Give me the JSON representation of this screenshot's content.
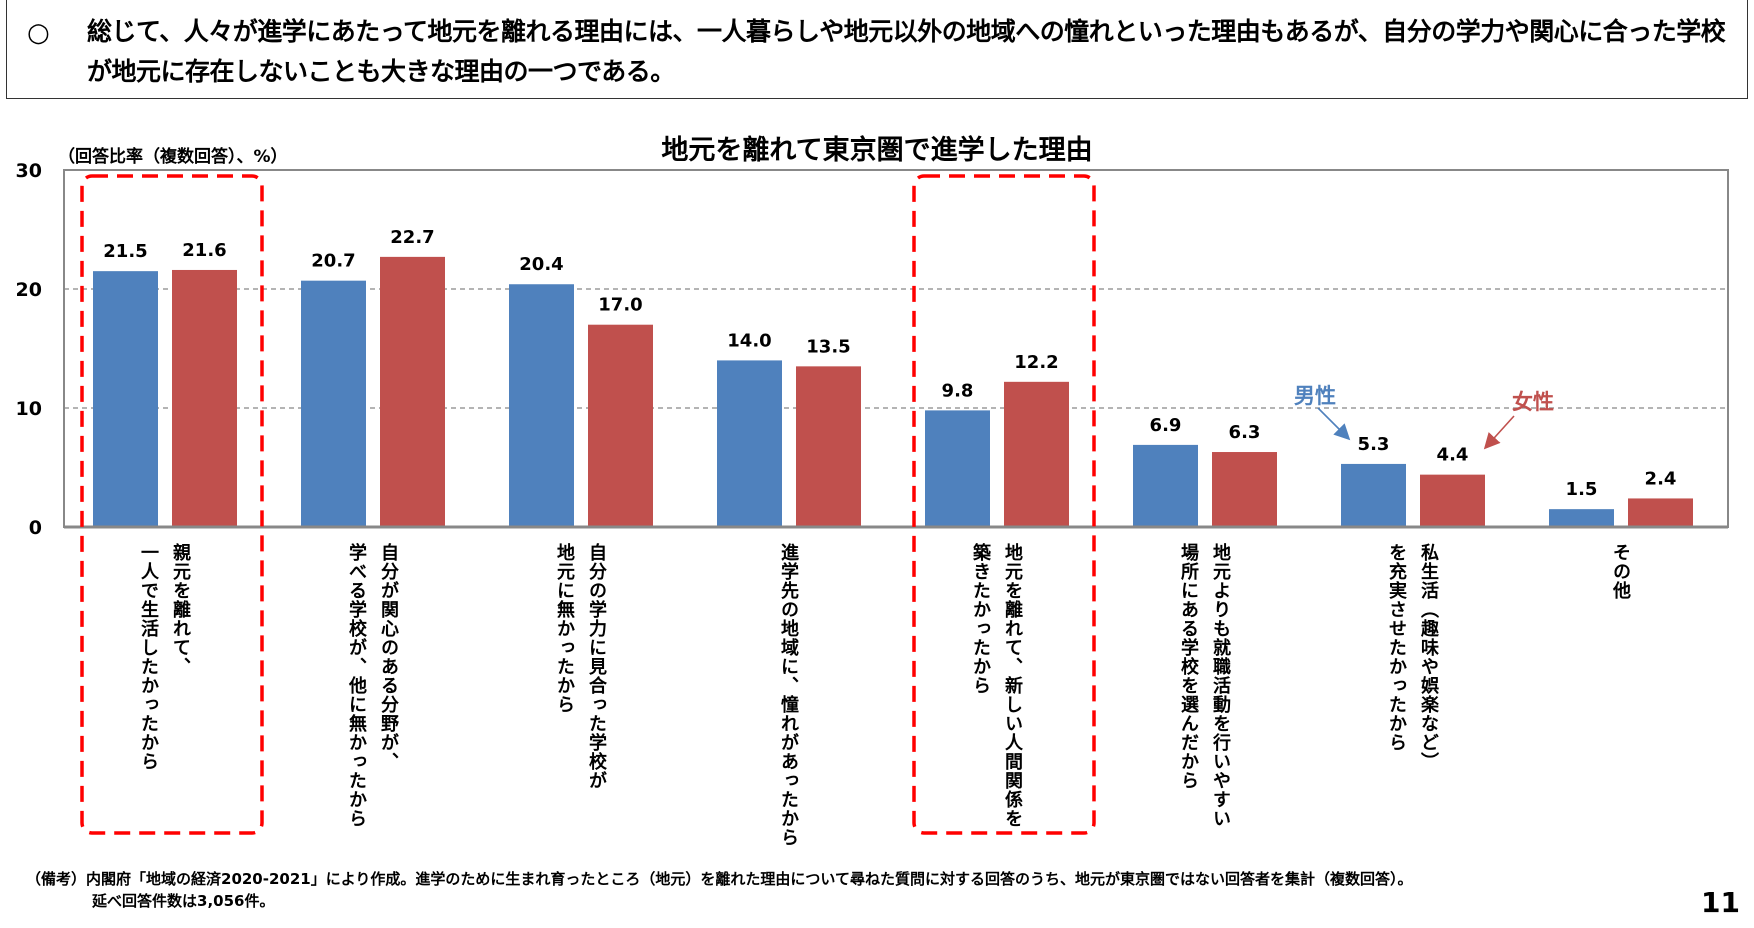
{
  "headline": {
    "bullet": "○",
    "text": "総じて、人々が進学にあたって地元を離れる理由には、一人暮らしや地元以外の地域への憧れといった理由もあるが、自分の学力や関心に合った学校が地元に存在しないことも大きな理由の一つである。"
  },
  "chart_data": {
    "type": "bar",
    "title": "地元を離れて東京圏で進学した理由",
    "ylabel": "（回答比率（複数回答）、%）",
    "ylim": [
      0,
      30
    ],
    "yticks": [
      "0",
      "10",
      "20",
      "30"
    ],
    "grid": true,
    "categories": [
      "親元を離れて、\n一人で生活したかったから",
      "自分が関心のある分野が、\n学べる学校が、他に無かったから",
      "自分の学力に見合った学校が\n地元に無かったから",
      "進学先の地域に、憧れがあったから",
      "地元を離れて、新しい人間関係を\n築きたかったから",
      "地元よりも就職活動を行いやすい\n場所にある学校を選んだから",
      "私生活（趣味や娯楽など）\nを充実させたかったから",
      "その他"
    ],
    "series": [
      {
        "name": "男性",
        "color": "#4f81bd",
        "values": [
          21.5,
          20.7,
          20.4,
          14.0,
          9.8,
          6.9,
          5.3,
          1.5
        ]
      },
      {
        "name": "女性",
        "color": "#c0504d",
        "values": [
          21.6,
          22.7,
          17.0,
          13.5,
          12.2,
          6.3,
          4.4,
          2.4
        ]
      }
    ],
    "highlighted_categories": [
      0,
      4
    ],
    "highlight_color": "#ff0000"
  },
  "footnote": {
    "line1": "（備考）内閣府「地域の経済2020-2021」により作成。進学のために生まれ育ったところ（地元）を離れた理由について尋ねた質問に対する回答のうち、地元が東京圏ではない回答者を集計（複数回答）。",
    "line2": "延べ回答件数は3,056件。"
  },
  "page_number": "11"
}
